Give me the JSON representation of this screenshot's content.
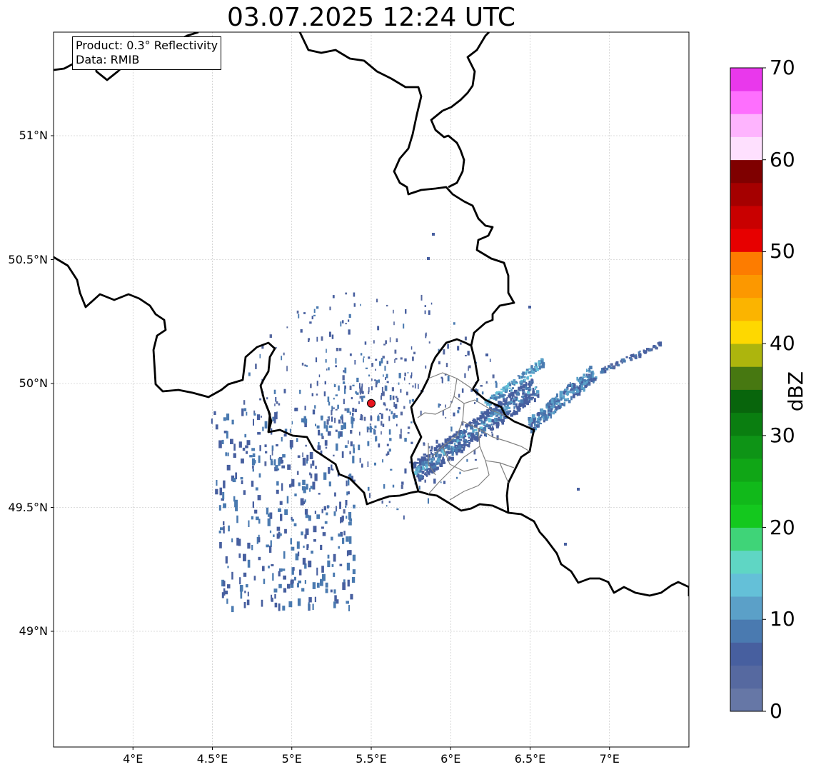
{
  "title": "03.07.2025 12:24 UTC",
  "info": {
    "product": "Product: 0.3° Reflectivity",
    "data": "Data: RMIB"
  },
  "map": {
    "extent": {
      "lon": [
        3.5,
        7.5
      ],
      "lat": [
        48.55,
        51.4
      ]
    },
    "lat_ticks": [
      {
        "value": 51.0,
        "label": "51°N"
      },
      {
        "value": 50.5,
        "label": "50.5°N"
      },
      {
        "value": 50.0,
        "label": "50°N"
      },
      {
        "value": 49.5,
        "label": "49.5°N"
      },
      {
        "value": 49.0,
        "label": "49°N"
      }
    ],
    "lon_ticks": [
      {
        "value": 4.0,
        "label": "4°E"
      },
      {
        "value": 4.5,
        "label": "4.5°E"
      },
      {
        "value": 5.0,
        "label": "5°E"
      },
      {
        "value": 5.5,
        "label": "5.5°E"
      },
      {
        "value": 6.0,
        "label": "6°E"
      },
      {
        "value": 6.5,
        "label": "6.5°E"
      },
      {
        "value": 7.0,
        "label": "7°E"
      }
    ],
    "radar_site": {
      "lon": 5.5,
      "lat": 49.92,
      "color": "#e8141e"
    },
    "border_color": "#000000",
    "admin_border_color": "#808080",
    "grid": true
  },
  "colorbar": {
    "label": "dBZ",
    "min": 0,
    "max": 70,
    "ticks": [
      "0",
      "10",
      "20",
      "30",
      "40",
      "50",
      "60",
      "70"
    ],
    "colors": [
      "#6677a6",
      "#5669a0",
      "#475f9f",
      "#4a7ab0",
      "#5ba0c8",
      "#64c0d8",
      "#5fd6c4",
      "#3fd478",
      "#14c81e",
      "#11b91a",
      "#10a616",
      "#0e9416",
      "#0a7e10",
      "#08650c",
      "#477811",
      "#adb50d",
      "#fed800",
      "#fbb400",
      "#fc9800",
      "#fd7c00",
      "#e70000",
      "#c90000",
      "#a50000",
      "#7f0000",
      "#fee0fe",
      "#feb4fe",
      "#fe6ffe",
      "#e938ec"
    ]
  }
}
